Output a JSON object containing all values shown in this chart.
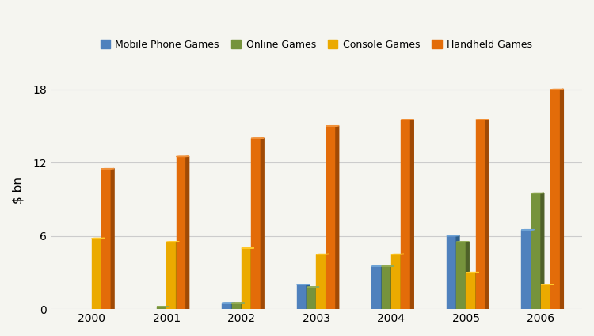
{
  "years": [
    2000,
    2001,
    2002,
    2003,
    2004,
    2005,
    2006
  ],
  "mobile_phone_games": [
    0.0,
    0.0,
    0.5,
    2.0,
    3.5,
    6.0,
    6.5
  ],
  "online_games": [
    0.0,
    0.2,
    0.5,
    1.8,
    3.5,
    5.5,
    9.5
  ],
  "console_games": [
    5.8,
    5.5,
    5.0,
    4.5,
    4.5,
    3.0,
    2.0
  ],
  "handheld_games": [
    11.5,
    12.5,
    14.0,
    15.0,
    15.5,
    15.5,
    18.0
  ],
  "colors": {
    "mobile_front": "#4F81BD",
    "mobile_side": "#2E5F8A",
    "mobile_top": "#6FA3D5",
    "online_front": "#76933C",
    "online_side": "#4E6128",
    "online_top": "#92AB55",
    "console_front": "#EBAA00",
    "console_side": "#B07E00",
    "console_top": "#FFC82A",
    "handheld_front": "#E36C09",
    "handheld_side": "#A04A05",
    "handheld_top": "#F0913A"
  },
  "legend_colors": {
    "mobile": "#4F81BD",
    "online": "#76933C",
    "console": "#EBAA00",
    "handheld": "#E36C09"
  },
  "legend_labels": [
    "Mobile Phone Games",
    "Online Games",
    "Console Games",
    "Handheld Games"
  ],
  "ylabel": "$ bn",
  "ylim": [
    0,
    19.5
  ],
  "yticks": [
    0,
    6,
    12,
    18
  ],
  "bar_width": 0.13,
  "depth": 0.04,
  "background_color": "#F5F5F0"
}
